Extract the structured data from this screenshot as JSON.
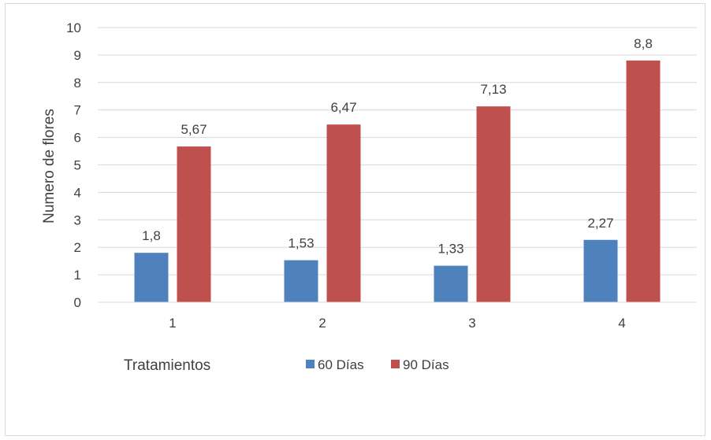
{
  "chart_data": {
    "type": "bar",
    "categories": [
      "1",
      "2",
      "3",
      "4"
    ],
    "series": [
      {
        "name": "60 Días",
        "values": [
          1.8,
          1.53,
          1.33,
          2.27
        ],
        "labels": [
          "1,8",
          "1,53",
          "1,33",
          "2,27"
        ],
        "color": "#4f81bd"
      },
      {
        "name": "90 Días",
        "values": [
          5.67,
          6.47,
          7.13,
          8.8
        ],
        "labels": [
          "5,67",
          "6,47",
          "7,13",
          "8,8"
        ],
        "color": "#c0504d"
      }
    ],
    "title": "",
    "xlabel": "Tratamientos",
    "ylabel": "Numero de flores",
    "ylim": [
      0,
      10
    ],
    "yticks": [
      "0",
      "1",
      "2",
      "3",
      "4",
      "5",
      "6",
      "7",
      "8",
      "9",
      "10"
    ],
    "grid": true,
    "legend_position": "bottom"
  }
}
